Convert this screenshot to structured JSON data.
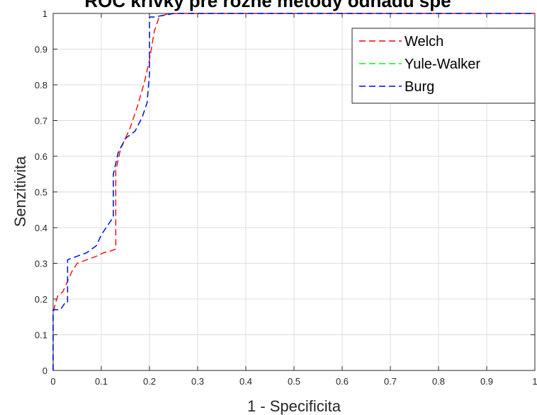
{
  "chart_data": {
    "type": "line",
    "title": "ROC krivky pre rôzne metódy odhadu spe",
    "xlabel": "1 - Specificita",
    "ylabel": "Senzitivita",
    "xlim": [
      0,
      1
    ],
    "ylim": [
      0,
      1
    ],
    "x_ticks": [
      "0",
      "0.1",
      "0.2",
      "0.3",
      "0.4",
      "0.5",
      "0.6",
      "0.7",
      "0.8",
      "0.9",
      "1"
    ],
    "y_ticks": [
      "0",
      "0.1",
      "0.2",
      "0.3",
      "0.4",
      "0.5",
      "0.6",
      "0.7",
      "0.8",
      "0.9",
      "1"
    ],
    "grid": true,
    "legend_position": "top-right",
    "series": [
      {
        "name": "Welch",
        "color": "#ff0000",
        "style": "dashed",
        "points": [
          [
            0,
            0
          ],
          [
            0,
            0.16
          ],
          [
            0.005,
            0.19
          ],
          [
            0.01,
            0.21
          ],
          [
            0.02,
            0.22
          ],
          [
            0.03,
            0.25
          ],
          [
            0.04,
            0.28
          ],
          [
            0.05,
            0.3
          ],
          [
            0.07,
            0.31
          ],
          [
            0.09,
            0.32
          ],
          [
            0.105,
            0.33
          ],
          [
            0.12,
            0.335
          ],
          [
            0.13,
            0.34
          ],
          [
            0.13,
            0.56
          ],
          [
            0.14,
            0.62
          ],
          [
            0.16,
            0.68
          ],
          [
            0.175,
            0.74
          ],
          [
            0.19,
            0.81
          ],
          [
            0.2,
            0.87
          ],
          [
            0.21,
            0.95
          ],
          [
            0.22,
            0.99
          ],
          [
            0.24,
            1
          ],
          [
            0.26,
            1
          ],
          [
            1,
            1
          ]
        ]
      },
      {
        "name": "Yule-Walker",
        "color": "#00ff00",
        "style": "dashed",
        "points": [
          [
            0,
            0
          ],
          [
            0,
            0.17
          ],
          [
            0.015,
            0.17
          ],
          [
            0.025,
            0.19
          ],
          [
            0.03,
            0.19
          ],
          [
            0.03,
            0.31
          ],
          [
            0.05,
            0.32
          ],
          [
            0.07,
            0.33
          ],
          [
            0.09,
            0.35
          ],
          [
            0.1,
            0.38
          ],
          [
            0.115,
            0.41
          ],
          [
            0.125,
            0.43
          ],
          [
            0.125,
            0.55
          ],
          [
            0.135,
            0.61
          ],
          [
            0.15,
            0.65
          ],
          [
            0.17,
            0.67
          ],
          [
            0.185,
            0.71
          ],
          [
            0.195,
            0.75
          ],
          [
            0.2,
            0.83
          ],
          [
            0.2,
            0.99
          ],
          [
            0.21,
            0.99
          ],
          [
            0.25,
            1
          ],
          [
            0.27,
            1
          ],
          [
            1,
            1
          ]
        ]
      },
      {
        "name": "Burg",
        "color": "#0000ff",
        "style": "dashed",
        "points": [
          [
            0,
            0
          ],
          [
            0,
            0.17
          ],
          [
            0.015,
            0.17
          ],
          [
            0.025,
            0.19
          ],
          [
            0.03,
            0.19
          ],
          [
            0.03,
            0.31
          ],
          [
            0.05,
            0.32
          ],
          [
            0.07,
            0.33
          ],
          [
            0.09,
            0.35
          ],
          [
            0.1,
            0.38
          ],
          [
            0.115,
            0.41
          ],
          [
            0.125,
            0.43
          ],
          [
            0.125,
            0.55
          ],
          [
            0.135,
            0.61
          ],
          [
            0.15,
            0.65
          ],
          [
            0.17,
            0.67
          ],
          [
            0.185,
            0.71
          ],
          [
            0.195,
            0.75
          ],
          [
            0.2,
            0.83
          ],
          [
            0.2,
            0.99
          ],
          [
            0.21,
            0.99
          ],
          [
            0.25,
            1
          ],
          [
            0.27,
            1
          ],
          [
            1,
            1
          ]
        ]
      }
    ]
  }
}
